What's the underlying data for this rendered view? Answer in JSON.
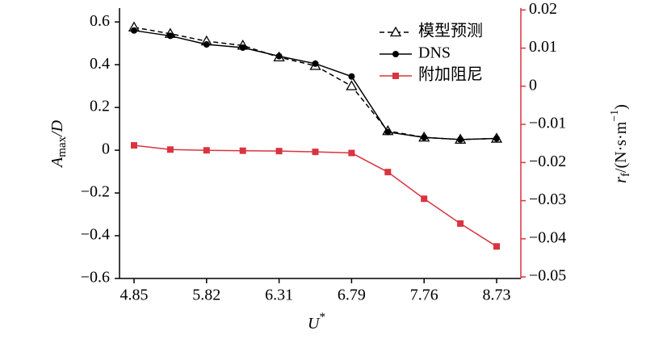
{
  "chart_data": {
    "type": "line",
    "categories": [
      "4.85",
      null,
      "5.82",
      null,
      "6.31",
      null,
      "6.79",
      null,
      "7.76",
      null,
      "8.73"
    ],
    "xlabel": [
      "U",
      "*"
    ],
    "ylabel": [
      "A",
      "max",
      "/D"
    ],
    "y2label": [
      "r",
      "f",
      "/(N·s·m",
      "−1",
      ")"
    ],
    "ylim": [
      -0.6,
      0.665
    ],
    "yticks": [
      {
        "value": -0.6,
        "label": "−0.6"
      },
      {
        "value": -0.4,
        "label": "−0.4"
      },
      {
        "value": -0.2,
        "label": "−0.2"
      },
      0,
      0.2,
      0.4,
      0.6
    ],
    "y2lim": [
      -0.0504,
      0.0205
    ],
    "y2ticks": [
      {
        "value": -0.05,
        "label": "−0.05"
      },
      {
        "value": -0.04,
        "label": "−0.04"
      },
      {
        "value": -0.03,
        "label": "−0.03"
      },
      {
        "value": -0.02,
        "label": "−0.02"
      },
      {
        "value": -0.01,
        "label": "−0.01"
      },
      0,
      0.01,
      0.02
    ],
    "y2color": "#d9343f",
    "series": [
      {
        "name": "模型预测",
        "color": "#000000",
        "dash": true,
        "marker": "triangle",
        "values": [
          0.575,
          0.545,
          0.51,
          0.49,
          0.435,
          0.395,
          0.3,
          0.09,
          0.06,
          0.05,
          0.055
        ]
      },
      {
        "name": "DNS",
        "color": "#000000",
        "dash": false,
        "marker": "circle",
        "values": [
          0.56,
          0.535,
          0.495,
          0.48,
          0.44,
          0.405,
          0.345,
          0.085,
          0.06,
          0.05,
          0.055
        ]
      },
      {
        "name": "附加阻尼",
        "color": "#d9343f",
        "dash": false,
        "marker": "square",
        "axis": "y2",
        "values": [
          -0.0155,
          -0.0166,
          -0.0168,
          -0.0169,
          -0.017,
          -0.0172,
          -0.0175,
          -0.0225,
          -0.0295,
          -0.036,
          -0.042
        ]
      }
    ],
    "legend": "upper right"
  }
}
